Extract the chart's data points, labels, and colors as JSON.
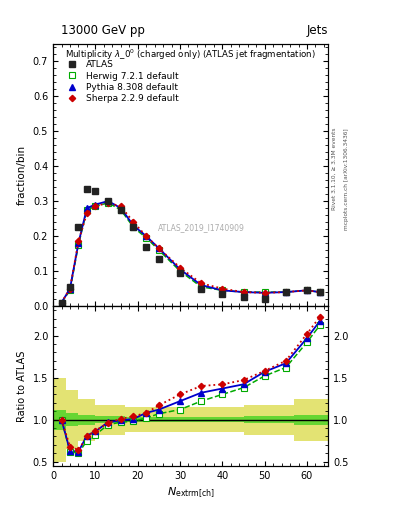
{
  "title_top": "13000 GeV pp",
  "title_right": "Jets",
  "main_title": "Multiplicity $\\lambda$_0$^0$ (charged only) (ATLAS jet fragmentation)",
  "watermark": "ATLAS_2019_I1740909",
  "right_label1": "Rivet 3.1.10, ≥ 3.3M events",
  "right_label2": "mcplots.cern.ch [arXiv:1306.3436]",
  "ylabel_main": "fraction/bin",
  "ylabel_ratio": "Ratio to ATLAS",
  "xlabel": "$N_{\\rm extrm{ch}}$",
  "xlim": [
    0,
    65
  ],
  "ylim_main": [
    0,
    0.75
  ],
  "ylim_ratio": [
    0.45,
    2.35
  ],
  "atlas_x": [
    2,
    4,
    6,
    8,
    10,
    13,
    16,
    19,
    22,
    25,
    30,
    35,
    40,
    45,
    50,
    55,
    60,
    63
  ],
  "atlas_y": [
    0.01,
    0.055,
    0.225,
    0.335,
    0.33,
    0.3,
    0.275,
    0.225,
    0.17,
    0.135,
    0.095,
    0.05,
    0.035,
    0.025,
    0.02,
    0.04,
    0.045,
    0.04
  ],
  "herwig_x": [
    2,
    4,
    6,
    8,
    10,
    13,
    16,
    19,
    22,
    25,
    30,
    35,
    40,
    45,
    50,
    55,
    60,
    63
  ],
  "herwig_y": [
    0.01,
    0.045,
    0.175,
    0.275,
    0.285,
    0.295,
    0.275,
    0.225,
    0.195,
    0.16,
    0.1,
    0.055,
    0.045,
    0.04,
    0.04,
    0.04,
    0.045,
    0.04
  ],
  "pythia_x": [
    2,
    4,
    6,
    8,
    10,
    13,
    16,
    19,
    22,
    25,
    30,
    35,
    40,
    45,
    50,
    55,
    60,
    63
  ],
  "pythia_y": [
    0.01,
    0.05,
    0.18,
    0.28,
    0.29,
    0.3,
    0.28,
    0.23,
    0.2,
    0.165,
    0.105,
    0.06,
    0.045,
    0.04,
    0.038,
    0.04,
    0.045,
    0.04
  ],
  "sherpa_x": [
    2,
    4,
    6,
    8,
    10,
    13,
    16,
    19,
    22,
    25,
    30,
    35,
    40,
    45,
    50,
    55,
    60,
    63
  ],
  "sherpa_y": [
    0.01,
    0.05,
    0.185,
    0.265,
    0.285,
    0.295,
    0.285,
    0.24,
    0.2,
    0.165,
    0.11,
    0.065,
    0.05,
    0.04,
    0.038,
    0.04,
    0.045,
    0.04
  ],
  "rx": [
    2,
    4,
    6,
    8,
    10,
    13,
    16,
    19,
    22,
    25,
    30,
    35,
    40,
    45,
    50,
    55,
    60,
    63
  ],
  "herwig_ratio": [
    1.0,
    0.62,
    0.6,
    0.75,
    0.82,
    0.94,
    0.97,
    0.98,
    1.02,
    1.07,
    1.12,
    1.22,
    1.3,
    1.38,
    1.52,
    1.62,
    1.92,
    2.12
  ],
  "pythia_ratio": [
    1.0,
    0.63,
    0.62,
    0.81,
    0.86,
    0.97,
    0.99,
    1.01,
    1.08,
    1.12,
    1.22,
    1.32,
    1.37,
    1.42,
    1.57,
    1.67,
    1.97,
    2.17
  ],
  "sherpa_ratio": [
    1.0,
    0.68,
    0.64,
    0.8,
    0.87,
    0.96,
    1.01,
    1.04,
    1.08,
    1.17,
    1.3,
    1.4,
    1.42,
    1.47,
    1.58,
    1.7,
    2.02,
    2.22
  ],
  "band_edges": [
    0,
    3,
    6,
    10,
    17,
    25,
    35,
    45,
    57,
    65
  ],
  "outer_lo": [
    0.5,
    0.65,
    0.75,
    0.82,
    0.85,
    0.85,
    0.85,
    0.82,
    0.75,
    0.7
  ],
  "outer_hi": [
    1.5,
    1.35,
    1.25,
    1.18,
    1.15,
    1.15,
    1.15,
    1.18,
    1.25,
    1.3
  ],
  "inner_lo": [
    0.88,
    0.92,
    0.94,
    0.96,
    0.97,
    0.97,
    0.97,
    0.96,
    0.94,
    0.92
  ],
  "inner_hi": [
    1.12,
    1.08,
    1.06,
    1.04,
    1.03,
    1.03,
    1.03,
    1.04,
    1.06,
    1.08
  ],
  "atlas_color": "#222222",
  "herwig_color": "#00aa00",
  "pythia_color": "#0000cc",
  "sherpa_color": "#cc0000",
  "inner_band_color": "#00cc00",
  "outer_band_color": "#cccc00",
  "inner_band_alpha": 0.55,
  "outer_band_alpha": 0.55
}
